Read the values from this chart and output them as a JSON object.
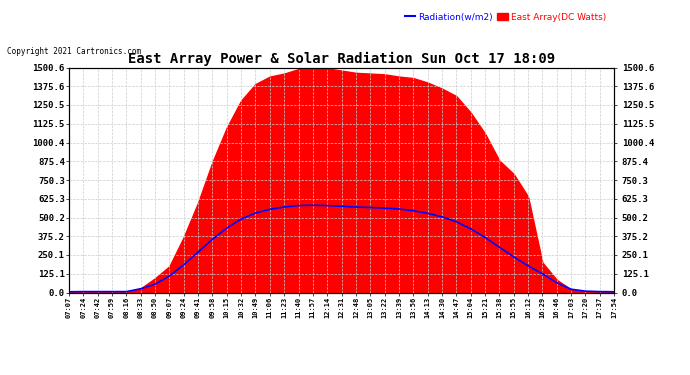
{
  "title": "East Array Power & Solar Radiation Sun Oct 17 18:09",
  "copyright": "Copyright 2021 Cartronics.com",
  "legend_radiation": "Radiation(w/m2)",
  "legend_east_array": "East Array(DC Watts)",
  "yticks": [
    0.0,
    125.1,
    250.1,
    375.2,
    500.2,
    625.3,
    750.3,
    875.4,
    1000.4,
    1125.5,
    1250.5,
    1375.6,
    1500.6
  ],
  "ymax": 1500.6,
  "ymin": 0.0,
  "background_color": "#ffffff",
  "grid_color": "#cccccc",
  "radiation_color": "#0000ff",
  "east_array_color": "#ff0000",
  "xtick_labels": [
    "07:07",
    "07:24",
    "07:42",
    "07:59",
    "08:16",
    "08:33",
    "08:50",
    "09:07",
    "09:24",
    "09:41",
    "09:58",
    "10:15",
    "10:32",
    "10:49",
    "11:06",
    "11:23",
    "11:40",
    "11:57",
    "12:14",
    "12:31",
    "12:48",
    "13:05",
    "13:22",
    "13:39",
    "13:56",
    "14:13",
    "14:30",
    "14:47",
    "15:04",
    "15:21",
    "15:38",
    "15:55",
    "16:12",
    "16:29",
    "16:46",
    "17:03",
    "17:20",
    "17:37",
    "17:54"
  ],
  "east_array_values": [
    2,
    2,
    3,
    3,
    4,
    28,
    95,
    175,
    370,
    600,
    870,
    1100,
    1280,
    1390,
    1440,
    1460,
    1490,
    1495,
    1495,
    1480,
    1465,
    1460,
    1455,
    1440,
    1430,
    1400,
    1360,
    1310,
    1200,
    1060,
    880,
    790,
    640,
    200,
    85,
    20,
    5,
    2,
    1
  ],
  "radiation_values": [
    5,
    6,
    6,
    6,
    6,
    25,
    55,
    110,
    185,
    270,
    355,
    430,
    490,
    530,
    555,
    570,
    580,
    582,
    580,
    575,
    570,
    567,
    563,
    557,
    545,
    528,
    505,
    472,
    425,
    368,
    302,
    238,
    178,
    125,
    65,
    22,
    9,
    6,
    5
  ],
  "radiation_scale": 1.0,
  "figwidth": 6.9,
  "figheight": 3.75,
  "dpi": 100
}
